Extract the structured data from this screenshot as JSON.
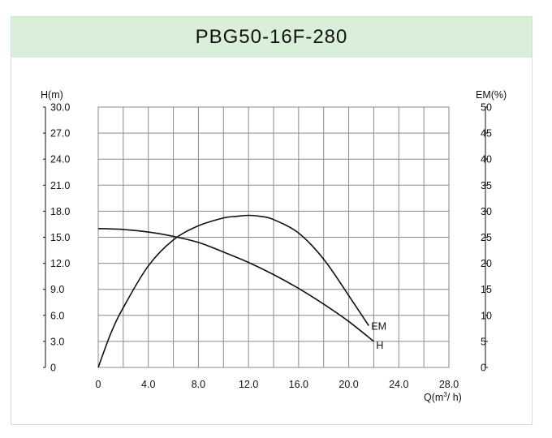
{
  "colors": {
    "title_bg": "#d9efd9",
    "grid": "#8a8a8a",
    "curve": "#111111",
    "border": "#cfe3cf"
  },
  "chart_data": {
    "type": "line",
    "title": "PBG50-16F-280",
    "xlabel_prefix": "Q(m",
    "xlabel_sup": "3",
    "xlabel_suffix": "/ h)",
    "ylabel_left": "H(m)",
    "ylabel_right": "EM(%)",
    "xlim": [
      0,
      28
    ],
    "ylim_left": [
      0,
      30
    ],
    "ylim_right": [
      0,
      50
    ],
    "x_ticks": [
      "0",
      "4.0",
      "8.0",
      "12.0",
      "16.0",
      "20.0",
      "24.0",
      "28.0"
    ],
    "y_left_ticks": [
      "0",
      "3.0",
      "6.0",
      "9.0",
      "12.0",
      "15.0",
      "18.0",
      "21.0",
      "24.0",
      "27.0",
      "30.0"
    ],
    "y_right_ticks": [
      "0",
      "5",
      "10",
      "15",
      "20",
      "25",
      "30",
      "35",
      "40",
      "45",
      "50"
    ],
    "grid": true,
    "series": [
      {
        "name": "H",
        "axis": "left",
        "x": [
          0,
          2,
          4,
          6,
          8,
          10,
          12,
          14,
          16,
          18,
          20,
          22
        ],
        "y": [
          16.0,
          15.9,
          15.6,
          15.1,
          14.4,
          13.3,
          12.1,
          10.7,
          9.1,
          7.3,
          5.3,
          3.0
        ]
      },
      {
        "name": "EM",
        "axis": "right",
        "x": [
          0,
          1,
          2,
          4,
          6,
          8,
          10,
          11,
          12,
          13,
          14,
          16,
          18,
          20,
          21.6
        ],
        "y": [
          0,
          6.5,
          11.5,
          19.5,
          24.5,
          27.2,
          28.7,
          29.0,
          29.2,
          29.0,
          28.4,
          25.8,
          20.8,
          13.8,
          8.0
        ]
      }
    ]
  }
}
